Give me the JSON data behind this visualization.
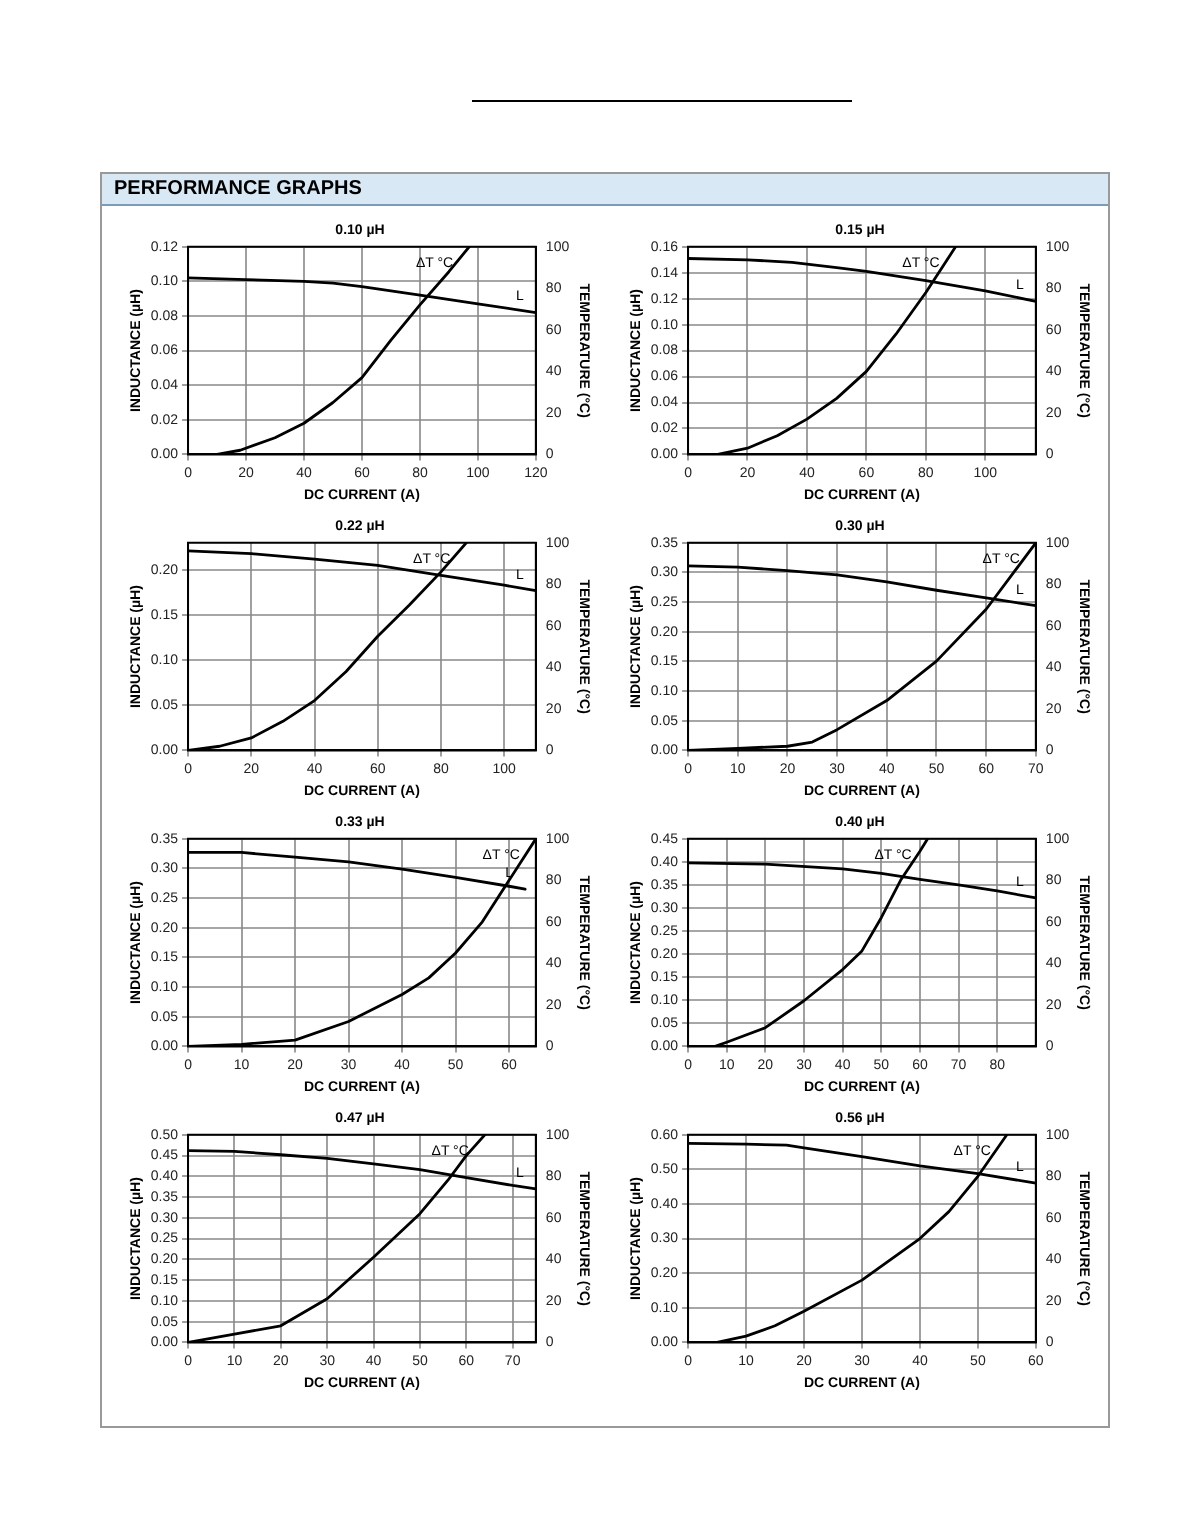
{
  "chart_data": [
    {
      "type": "other",
      "title": "PERFORMANCE GRAPHS"
    },
    {
      "type": "line",
      "title": "0.10 µH",
      "xlabel": "DC CURRENT (A)",
      "ylabel": "INDUCTANCE (µH)",
      "y2label": "TEMPERATURE (°C)",
      "xlim": [
        0,
        120
      ],
      "xticks": [
        0,
        20,
        40,
        60,
        80,
        100,
        120
      ],
      "ylim": [
        0,
        0.12
      ],
      "yticks": [
        {
          "value": 0,
          "label": "0.00"
        },
        {
          "value": 0.02,
          "label": "0.02"
        },
        {
          "value": 0.04,
          "label": "0.04"
        },
        {
          "value": 0.06,
          "label": "0.06"
        },
        {
          "value": 0.08,
          "label": "0.08"
        },
        {
          "value": 0.1,
          "label": "0.10"
        },
        {
          "value": 0.12,
          "label": "0.12"
        }
      ],
      "y2lim": [
        0,
        100
      ],
      "y2ticks": [
        0,
        20,
        40,
        60,
        80,
        100
      ],
      "grid": true,
      "legend": false,
      "marker": "none",
      "line_style": "solid",
      "series": [
        {
          "name": "L",
          "color": "#000000",
          "x": [
            0,
            20,
            40,
            50,
            60,
            80,
            100,
            120
          ],
          "values": [
            0.102,
            0.101,
            0.1,
            0.099,
            0.097,
            0.092,
            0.087,
            0.082
          ]
        },
        {
          "name": "ΔT °C",
          "color": "#000000",
          "axis": "y2",
          "x": [
            0,
            10,
            18,
            30,
            40,
            50,
            60,
            70,
            80,
            90,
            97
          ],
          "values": [
            0,
            0,
            2,
            8,
            15,
            25,
            37,
            55,
            72,
            88,
            100
          ]
        }
      ]
    },
    {
      "type": "line",
      "title": "0.15 µH",
      "xlabel": "DC CURRENT (A)",
      "ylabel": "INDUCTANCE (µH)",
      "y2label": "TEMPERATURE (°C)",
      "xlim": [
        0,
        117
      ],
      "xticks": [
        0,
        20,
        40,
        60,
        80,
        100
      ],
      "ylim": [
        0,
        0.16
      ],
      "yticks": [
        {
          "value": 0,
          "label": "0.00"
        },
        {
          "value": 0.02,
          "label": "0.02"
        },
        {
          "value": 0.04,
          "label": "0.04"
        },
        {
          "value": 0.06,
          "label": "0.06"
        },
        {
          "value": 0.08,
          "label": "0.08"
        },
        {
          "value": 0.1,
          "label": "0.10"
        },
        {
          "value": 0.12,
          "label": "0.12"
        },
        {
          "value": 0.14,
          "label": "0.14"
        },
        {
          "value": 0.16,
          "label": "0.16"
        }
      ],
      "y2lim": [
        0,
        100
      ],
      "y2ticks": [
        0,
        20,
        40,
        60,
        80,
        100
      ],
      "grid": true,
      "legend": false,
      "marker": "none",
      "line_style": "solid",
      "series": [
        {
          "name": "L",
          "color": "#000000",
          "x": [
            0,
            20,
            35,
            50,
            60,
            80,
            100,
            117
          ],
          "values": [
            0.151,
            0.15,
            0.148,
            0.144,
            0.141,
            0.134,
            0.126,
            0.118
          ]
        },
        {
          "name": "ΔT °C",
          "color": "#000000",
          "axis": "y2",
          "x": [
            0,
            10,
            20,
            30,
            40,
            50,
            60,
            70,
            80,
            90
          ],
          "values": [
            0,
            0,
            3,
            9,
            17,
            27,
            40,
            58,
            78,
            100
          ]
        }
      ]
    },
    {
      "type": "line",
      "title": "0.22 µH",
      "xlabel": "DC CURRENT (A)",
      "ylabel": "INDUCTANCE (µH)",
      "y2label": "TEMPERATURE (°C)",
      "xlim": [
        0,
        110
      ],
      "xticks": [
        0,
        20,
        40,
        60,
        80,
        100
      ],
      "ylim": [
        0,
        0.23
      ],
      "yticks": [
        {
          "value": 0,
          "label": "0.00"
        },
        {
          "value": 0.05,
          "label": "0.05"
        },
        {
          "value": 0.1,
          "label": "0.10"
        },
        {
          "value": 0.15,
          "label": "0.15"
        },
        {
          "value": 0.2,
          "label": "0.20"
        }
      ],
      "y2lim": [
        0,
        100
      ],
      "y2ticks": [
        0,
        20,
        40,
        60,
        80,
        100
      ],
      "grid": true,
      "legend": false,
      "marker": "none",
      "line_style": "solid",
      "series": [
        {
          "name": "L",
          "color": "#000000",
          "x": [
            0,
            20,
            40,
            60,
            80,
            100,
            110
          ],
          "values": [
            0.221,
            0.218,
            0.212,
            0.205,
            0.194,
            0.183,
            0.177
          ]
        },
        {
          "name": "ΔT °C",
          "color": "#000000",
          "axis": "y2",
          "x": [
            0,
            10,
            20,
            30,
            40,
            50,
            60,
            70,
            80,
            88
          ],
          "values": [
            0,
            2,
            6,
            14,
            24,
            38,
            55,
            70,
            86,
            100
          ]
        }
      ]
    },
    {
      "type": "line",
      "title": "0.30 µH",
      "xlabel": "DC CURRENT (A)",
      "ylabel": "INDUCTANCE (µH)",
      "y2label": "TEMPERATURE (°C)",
      "xlim": [
        0,
        70
      ],
      "xticks": [
        0,
        10,
        20,
        30,
        40,
        50,
        60,
        70
      ],
      "ylim": [
        0,
        0.35
      ],
      "yticks": [
        {
          "value": 0,
          "label": "0.00"
        },
        {
          "value": 0.05,
          "label": "0.05"
        },
        {
          "value": 0.1,
          "label": "0.10"
        },
        {
          "value": 0.15,
          "label": "0.15"
        },
        {
          "value": 0.2,
          "label": "0.20"
        },
        {
          "value": 0.25,
          "label": "0.25"
        },
        {
          "value": 0.3,
          "label": "0.30"
        },
        {
          "value": 0.35,
          "label": "0.35"
        }
      ],
      "y2lim": [
        0,
        100
      ],
      "y2ticks": [
        0,
        20,
        40,
        60,
        80,
        100
      ],
      "grid": true,
      "legend": false,
      "marker": "none",
      "line_style": "solid",
      "series": [
        {
          "name": "L",
          "color": "#000000",
          "x": [
            0,
            10,
            20,
            30,
            40,
            50,
            60,
            70
          ],
          "values": [
            0.311,
            0.309,
            0.303,
            0.296,
            0.284,
            0.27,
            0.257,
            0.244
          ]
        },
        {
          "name": "ΔT °C",
          "color": "#000000",
          "axis": "y2",
          "x": [
            0,
            10,
            20,
            25,
            30,
            40,
            50,
            60,
            70
          ],
          "values": [
            0,
            1,
            2,
            4,
            10,
            24,
            43,
            68,
            100
          ]
        }
      ]
    },
    {
      "type": "line",
      "title": "0.33 µH",
      "xlabel": "DC CURRENT (A)",
      "ylabel": "INDUCTANCE (µH)",
      "y2label": "TEMPERATURE (°C)",
      "xlim": [
        0,
        65
      ],
      "xticks": [
        0,
        10,
        20,
        30,
        40,
        50,
        60
      ],
      "ylim": [
        0,
        0.35
      ],
      "yticks": [
        {
          "value": 0,
          "label": "0.00"
        },
        {
          "value": 0.05,
          "label": "0.05"
        },
        {
          "value": 0.1,
          "label": "0.10"
        },
        {
          "value": 0.15,
          "label": "0.15"
        },
        {
          "value": 0.2,
          "label": "0.20"
        },
        {
          "value": 0.25,
          "label": "0.25"
        },
        {
          "value": 0.3,
          "label": "0.30"
        },
        {
          "value": 0.35,
          "label": "0.35"
        }
      ],
      "y2lim": [
        0,
        100
      ],
      "y2ticks": [
        0,
        20,
        40,
        60,
        80,
        100
      ],
      "grid": true,
      "legend": false,
      "marker": "none",
      "line_style": "solid",
      "series": [
        {
          "name": "L",
          "color": "#000000",
          "x": [
            0,
            10,
            20,
            30,
            40,
            50,
            60,
            63
          ],
          "values": [
            0.327,
            0.327,
            0.319,
            0.311,
            0.299,
            0.285,
            0.27,
            0.265
          ]
        },
        {
          "name": "ΔT °C",
          "color": "#000000",
          "axis": "y2",
          "x": [
            0,
            10,
            20,
            30,
            40,
            45,
            50,
            55,
            60,
            65
          ],
          "values": [
            0,
            1,
            3,
            12,
            25,
            33,
            45,
            60,
            80,
            100
          ]
        }
      ]
    },
    {
      "type": "line",
      "title": "0.40 µH",
      "xlabel": "DC CURRENT (A)",
      "ylabel": "INDUCTANCE (µH)",
      "y2label": "TEMPERATURE (°C)",
      "xlim": [
        0,
        90
      ],
      "xticks": [
        0,
        10,
        20,
        30,
        40,
        50,
        60,
        70,
        80
      ],
      "ylim": [
        0,
        0.45
      ],
      "yticks": [
        {
          "value": 0,
          "label": "0.00"
        },
        {
          "value": 0.05,
          "label": "0.05"
        },
        {
          "value": 0.1,
          "label": "0.10"
        },
        {
          "value": 0.15,
          "label": "0.15"
        },
        {
          "value": 0.2,
          "label": "0.20"
        },
        {
          "value": 0.25,
          "label": "0.25"
        },
        {
          "value": 0.3,
          "label": "0.30"
        },
        {
          "value": 0.35,
          "label": "0.35"
        },
        {
          "value": 0.4,
          "label": "0.40"
        },
        {
          "value": 0.45,
          "label": "0.45"
        }
      ],
      "y2lim": [
        0,
        100
      ],
      "y2ticks": [
        0,
        20,
        40,
        60,
        80,
        100
      ],
      "grid": true,
      "legend": false,
      "marker": "none",
      "line_style": "solid",
      "series": [
        {
          "name": "L",
          "color": "#000000",
          "x": [
            0,
            20,
            40,
            50,
            60,
            70,
            80,
            90
          ],
          "values": [
            0.398,
            0.395,
            0.385,
            0.375,
            0.362,
            0.35,
            0.337,
            0.322
          ]
        },
        {
          "name": "ΔT °C",
          "color": "#000000",
          "axis": "y2",
          "x": [
            0,
            7,
            10,
            20,
            30,
            40,
            45,
            50,
            55,
            60,
            62
          ],
          "values": [
            0,
            0,
            2,
            9,
            22,
            37,
            46,
            62,
            80,
            94,
            100
          ]
        }
      ]
    },
    {
      "type": "line",
      "title": "0.47 µH",
      "xlabel": "DC CURRENT (A)",
      "ylabel": "INDUCTANCE (µH)",
      "y2label": "TEMPERATURE (°C)",
      "xlim": [
        0,
        75
      ],
      "xticks": [
        0,
        10,
        20,
        30,
        40,
        50,
        60,
        70
      ],
      "ylim": [
        0,
        0.5
      ],
      "yticks": [
        {
          "value": 0,
          "label": "0.00"
        },
        {
          "value": 0.05,
          "label": "0.05"
        },
        {
          "value": 0.1,
          "label": "0.10"
        },
        {
          "value": 0.15,
          "label": "0.15"
        },
        {
          "value": 0.2,
          "label": "0.20"
        },
        {
          "value": 0.25,
          "label": "0.25"
        },
        {
          "value": 0.3,
          "label": "0.30"
        },
        {
          "value": 0.35,
          "label": "0.35"
        },
        {
          "value": 0.4,
          "label": "0.40"
        },
        {
          "value": 0.45,
          "label": "0.45"
        },
        {
          "value": 0.5,
          "label": "0.50"
        }
      ],
      "y2lim": [
        0,
        100
      ],
      "y2ticks": [
        0,
        20,
        40,
        60,
        80,
        100
      ],
      "grid": true,
      "legend": false,
      "marker": "none",
      "line_style": "solid",
      "series": [
        {
          "name": "L",
          "color": "#000000",
          "x": [
            0,
            10,
            20,
            30,
            40,
            50,
            60,
            70,
            75
          ],
          "values": [
            0.462,
            0.46,
            0.452,
            0.443,
            0.43,
            0.416,
            0.397,
            0.378,
            0.37
          ]
        },
        {
          "name": "ΔT °C",
          "color": "#000000",
          "axis": "y2",
          "x": [
            0,
            10,
            20,
            30,
            40,
            50,
            56,
            60,
            64
          ],
          "values": [
            0,
            4,
            8,
            21,
            41,
            62,
            78,
            90,
            100
          ]
        }
      ]
    },
    {
      "type": "line",
      "title": "0.56 µH",
      "xlabel": "DC CURRENT (A)",
      "ylabel": "INDUCTANCE (µH)",
      "y2label": "TEMPERATURE (°C)",
      "xlim": [
        0,
        60
      ],
      "xticks": [
        0,
        10,
        20,
        30,
        40,
        50,
        60
      ],
      "ylim": [
        0,
        0.6
      ],
      "yticks": [
        {
          "value": 0,
          "label": "0.00"
        },
        {
          "value": 0.1,
          "label": "0.10"
        },
        {
          "value": 0.2,
          "label": "0.20"
        },
        {
          "value": 0.3,
          "label": "0.30"
        },
        {
          "value": 0.4,
          "label": "0.40"
        },
        {
          "value": 0.5,
          "label": "0.50"
        },
        {
          "value": 0.6,
          "label": "0.60"
        }
      ],
      "y2lim": [
        0,
        100
      ],
      "y2ticks": [
        0,
        20,
        40,
        60,
        80,
        100
      ],
      "grid": true,
      "legend": false,
      "marker": "none",
      "line_style": "solid",
      "series": [
        {
          "name": "L",
          "color": "#000000",
          "x": [
            0,
            10,
            17,
            20,
            30,
            40,
            50,
            60
          ],
          "values": [
            0.575,
            0.573,
            0.57,
            0.562,
            0.537,
            0.51,
            0.488,
            0.46
          ]
        },
        {
          "name": "ΔT °C",
          "color": "#000000",
          "axis": "y2",
          "x": [
            0,
            5,
            10,
            15,
            20,
            30,
            40,
            45,
            50,
            55
          ],
          "values": [
            0,
            0,
            3,
            8,
            15,
            30,
            50,
            63,
            80,
            100
          ]
        }
      ]
    }
  ]
}
